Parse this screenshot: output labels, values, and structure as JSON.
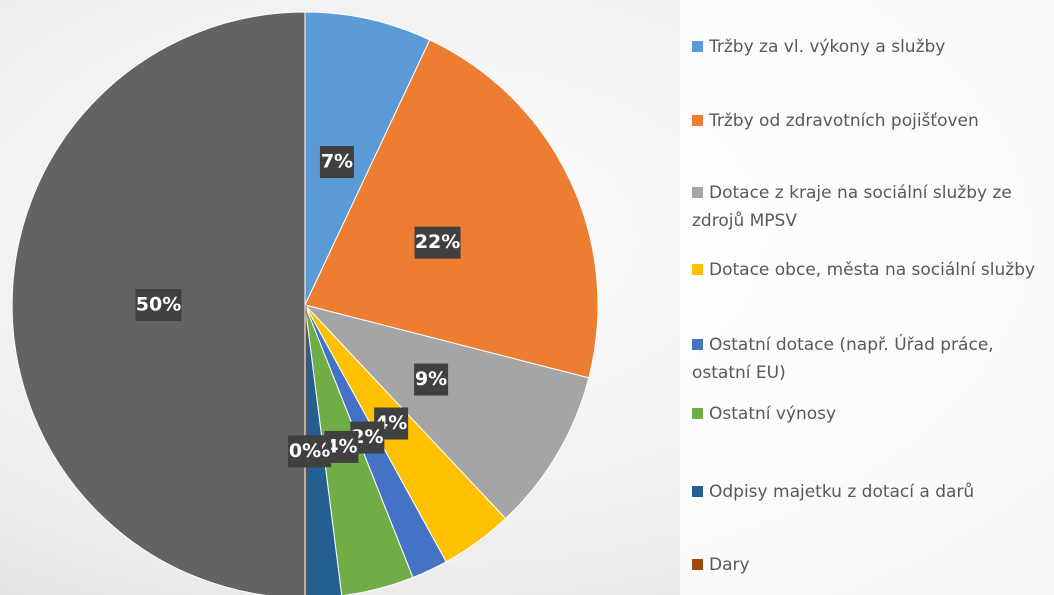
{
  "chart_data": {
    "type": "pie",
    "categories": [
      "Tržby za vl. výkony a služby",
      "Tržby od zdravotních pojišťoven",
      "Dotace z kraje na sociální služby ze zdrojů MPSV",
      "Dotace obce, města na sociální služby",
      "Ostatní dotace (např. Úřad práce, ostatní EU)",
      "Ostatní výnosy",
      "Odpisy majetku z dotací a darů",
      "Dary",
      null
    ],
    "values": [
      7,
      22,
      9,
      4,
      2,
      4,
      2,
      0,
      50
    ],
    "value_labels": [
      "7%",
      "22%",
      "9%",
      "4%",
      "2%",
      "4%",
      "2%",
      "0%",
      "50%"
    ],
    "colors": [
      "#5b9bd5",
      "#ed7d31",
      "#a5a5a5",
      "#ffc000",
      "#4472c4",
      "#70ad47",
      "#255e91",
      "#9e480e",
      "#636363"
    ],
    "legend": "right"
  }
}
